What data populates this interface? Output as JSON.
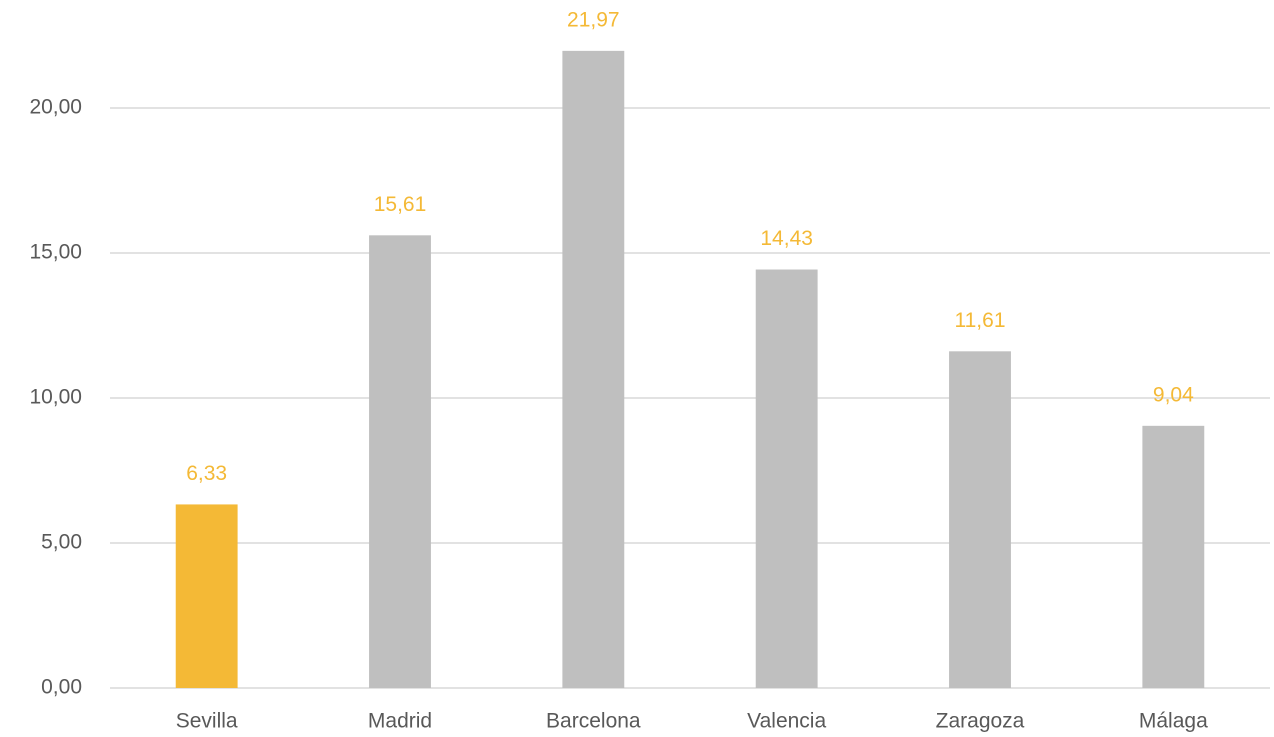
{
  "chart_data": {
    "type": "bar",
    "categories": [
      "Sevilla",
      "Madrid",
      "Barcelona",
      "Valencia",
      "Zaragoza",
      "Málaga"
    ],
    "values": [
      6.33,
      15.61,
      21.97,
      14.43,
      11.61,
      9.04
    ],
    "value_labels": [
      "6,33",
      "15,61",
      "21,97",
      "14,43",
      "11,61",
      "9,04"
    ],
    "colors": [
      "#f4b936",
      "#bfbfbf",
      "#bfbfbf",
      "#bfbfbf",
      "#bfbfbf",
      "#bfbfbf"
    ],
    "label_color": "#f4b936",
    "ylim": [
      0,
      23
    ],
    "yticks": [
      {
        "value": 0,
        "label": "0,00"
      },
      {
        "value": 5,
        "label": "5,00"
      },
      {
        "value": 10,
        "label": "10,00"
      },
      {
        "value": 15,
        "label": "15,00"
      },
      {
        "value": 20,
        "label": "20,00"
      }
    ],
    "grid": true
  }
}
